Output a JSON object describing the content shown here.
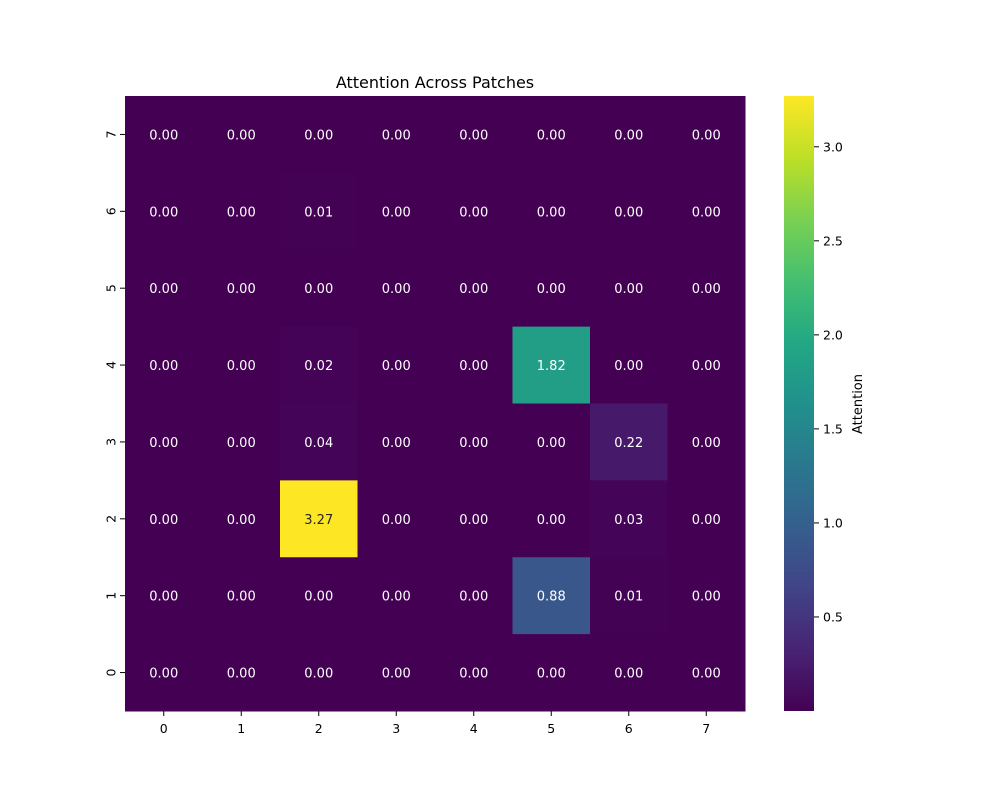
{
  "chart_data": {
    "type": "heatmap",
    "title": "Attention Across Patches",
    "xlabel": "",
    "ylabel": "",
    "x_categories": [
      "0",
      "1",
      "2",
      "3",
      "4",
      "5",
      "6",
      "7"
    ],
    "y_categories": [
      "7",
      "6",
      "5",
      "4",
      "3",
      "2",
      "1",
      "0"
    ],
    "values": [
      [
        0.0,
        0.0,
        0.0,
        0.0,
        0.0,
        0.0,
        0.0,
        0.0
      ],
      [
        0.0,
        0.0,
        0.01,
        0.0,
        0.0,
        0.0,
        0.0,
        0.0
      ],
      [
        0.0,
        0.0,
        0.0,
        0.0,
        0.0,
        0.0,
        0.0,
        0.0
      ],
      [
        0.0,
        0.0,
        0.02,
        0.0,
        0.0,
        1.82,
        0.0,
        0.0
      ],
      [
        0.0,
        0.0,
        0.04,
        0.0,
        0.0,
        0.0,
        0.22,
        0.0
      ],
      [
        0.0,
        0.0,
        3.27,
        0.0,
        0.0,
        0.0,
        0.03,
        0.0
      ],
      [
        0.0,
        0.0,
        0.0,
        0.0,
        0.0,
        0.88,
        0.01,
        0.0
      ],
      [
        0.0,
        0.0,
        0.0,
        0.0,
        0.0,
        0.0,
        0.0,
        0.0
      ]
    ],
    "value_format": "0.00",
    "colormap": "viridis",
    "vmin": 0.0,
    "vmax": 3.27,
    "colorbar": {
      "label": "Attention",
      "ticks": [
        0.5,
        1.0,
        1.5,
        2.0,
        2.5,
        3.0
      ],
      "tick_labels": [
        "0.5",
        "1.0",
        "1.5",
        "2.0",
        "2.5",
        "3.0"
      ]
    },
    "grid": false
  }
}
